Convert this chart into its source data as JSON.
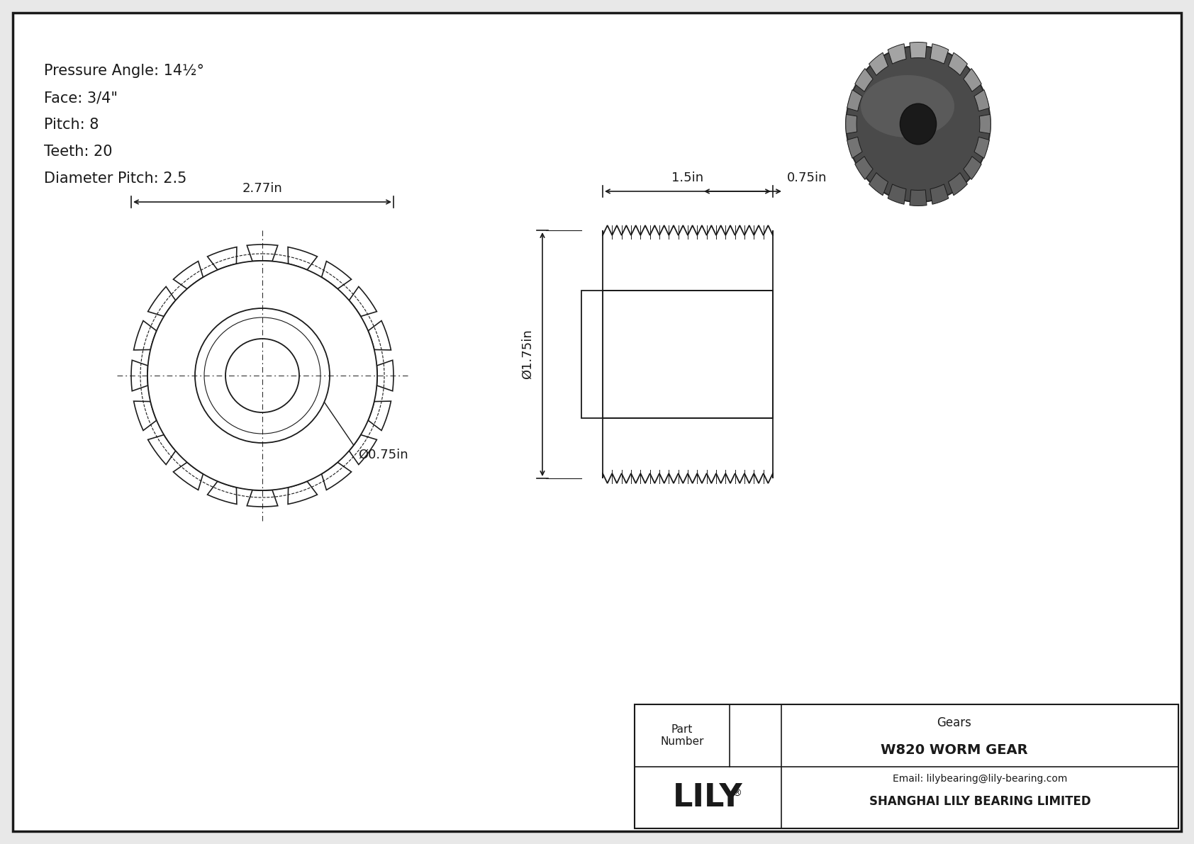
{
  "bg_color": "#ffffff",
  "line_color": "#1a1a1a",
  "specs": [
    "Pressure Angle: 14½°",
    "Face: 3/4\"",
    "Pitch: 8",
    "Teeth: 20",
    "Diameter Pitch: 2.5"
  ],
  "dim_front_width": "2.77in",
  "dim_front_bore": "Ø0.75in",
  "dim_side_top": "1.5in",
  "dim_side_right": "0.75in",
  "dim_side_height": "Ø1.75in",
  "company_name": "SHANGHAI LILY BEARING LIMITED",
  "company_email": "Email: lilybearing@lily-bearing.com",
  "brand": "LILY",
  "part_number_label": "Part\nNumber",
  "part_name": "W820 WORM GEAR",
  "category": "Gears",
  "num_teeth": 20
}
